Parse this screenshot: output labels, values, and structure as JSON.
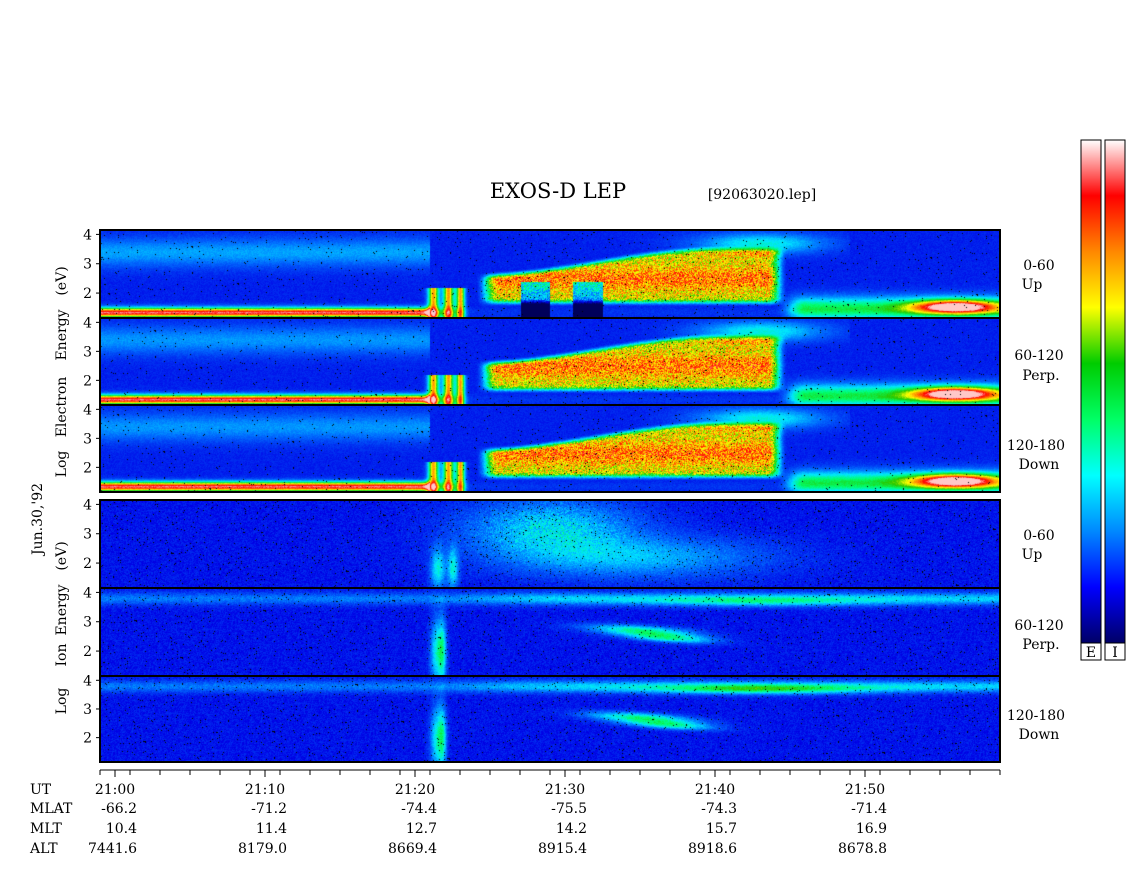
{
  "header": {
    "title": "EXOS-D LEP",
    "file": "[92063020.lep]",
    "date": "Jun.30,'92"
  },
  "electron_panel": {
    "axis_words": [
      "Log",
      "Electron",
      "Energy",
      "(eV)"
    ],
    "bands": [
      {
        "angle": "0-60",
        "direction": "Up"
      },
      {
        "angle": "60-120",
        "direction": "Perp."
      },
      {
        "angle": "120-180",
        "direction": "Down"
      }
    ]
  },
  "ion_panel": {
    "axis_words": [
      "Log",
      "Ion",
      "Energy",
      "(eV)"
    ],
    "bands": [
      {
        "angle": "0-60",
        "direction": "Up"
      },
      {
        "angle": "60-120",
        "direction": "Perp."
      },
      {
        "angle": "120-180",
        "direction": "Down"
      }
    ]
  },
  "colorbars": {
    "electron_label": "E",
    "ion_label": "I",
    "colors": [
      "#000066",
      "#0000ff",
      "#0088ff",
      "#00ffff",
      "#00ff66",
      "#00cc00",
      "#ffff00",
      "#ff8800",
      "#ff0000",
      "#ffffff"
    ]
  },
  "footer": {
    "row_labels": [
      "UT",
      "MLAT",
      "MLT",
      "ALT"
    ],
    "columns": [
      {
        "ut": "21:00",
        "mlat": "-66.2",
        "mlt": "10.4",
        "alt": "7441.6"
      },
      {
        "ut": "21:10",
        "mlat": "-71.2",
        "mlt": "11.4",
        "alt": "8179.0"
      },
      {
        "ut": "21:20",
        "mlat": "-74.4",
        "mlt": "12.7",
        "alt": "8669.4"
      },
      {
        "ut": "21:30",
        "mlat": "-75.5",
        "mlt": "14.2",
        "alt": "8915.4"
      },
      {
        "ut": "21:40",
        "mlat": "-74.3",
        "mlt": "15.7",
        "alt": "8918.6"
      },
      {
        "ut": "21:50",
        "mlat": "-71.4",
        "mlt": "16.9",
        "alt": "8678.8"
      }
    ]
  },
  "chart_data": {
    "type": "heatmap",
    "title": "EXOS-D LEP",
    "xlabel": "UT",
    "x_ticks": [
      "21:00",
      "21:10",
      "21:20",
      "21:30",
      "21:40",
      "21:50"
    ],
    "xlim_minutes_after_2100": [
      -1,
      59
    ],
    "y_ticks": [
      2,
      3,
      4
    ],
    "ylabel_electron": "Log Electron Energy (eV)",
    "ylabel_ion": "Log Ion Energy (eV)",
    "panels": [
      {
        "species": "electron",
        "pitch_angle": "0-60",
        "direction": "Up"
      },
      {
        "species": "electron",
        "pitch_angle": "60-120",
        "direction": "Perp."
      },
      {
        "species": "electron",
        "pitch_angle": "120-180",
        "direction": "Down"
      },
      {
        "species": "ion",
        "pitch_angle": "0-60",
        "direction": "Up"
      },
      {
        "species": "ion",
        "pitch_angle": "60-120",
        "direction": "Perp."
      },
      {
        "species": "ion",
        "pitch_angle": "120-180",
        "direction": "Down"
      }
    ]
  }
}
